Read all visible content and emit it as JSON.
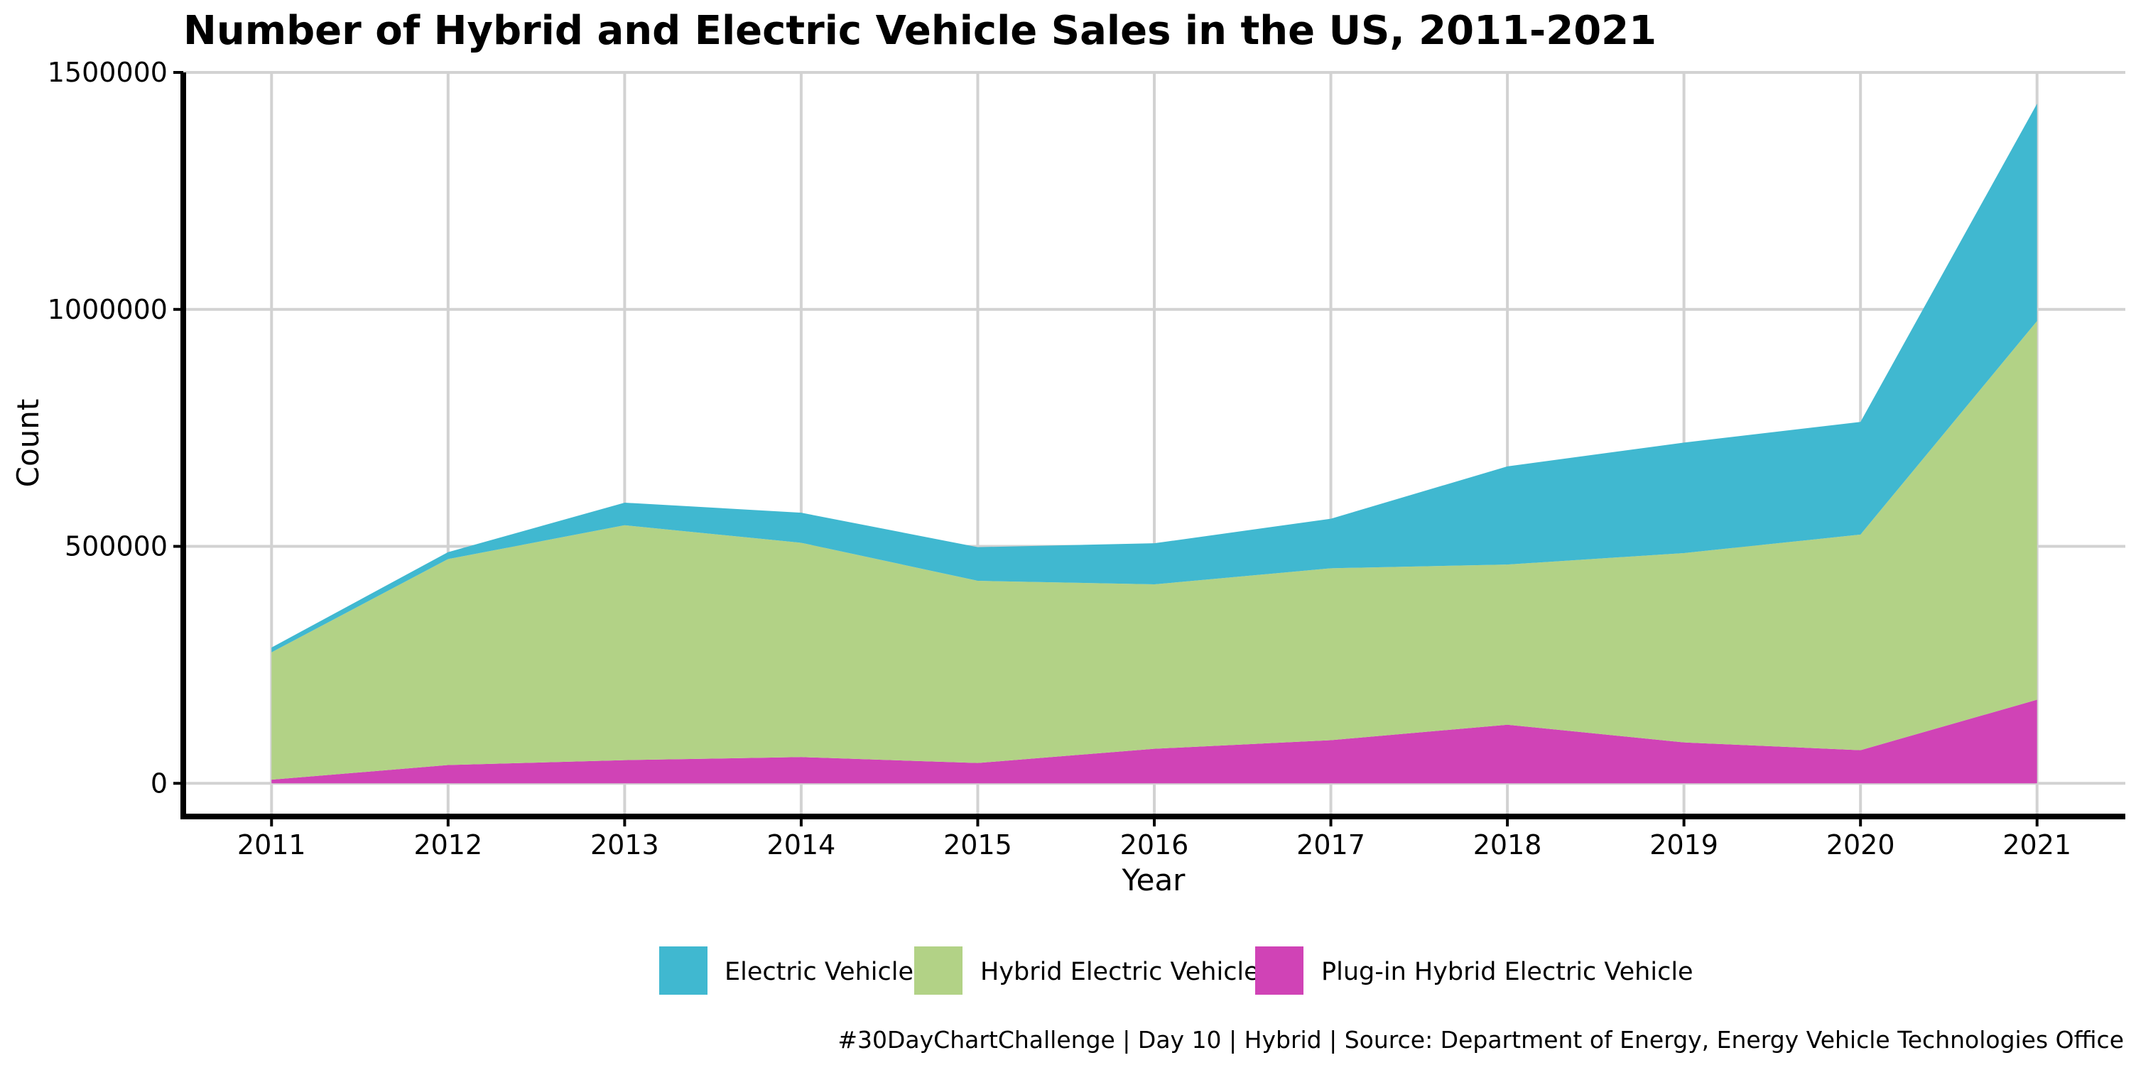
{
  "chart_data": {
    "type": "area",
    "stacked": true,
    "title": "Number of Hybrid and Electric Vehicle Sales in the US, 2011-2021",
    "xlabel": "Year",
    "ylabel": "Count",
    "x": [
      2011,
      2012,
      2013,
      2014,
      2015,
      2016,
      2017,
      2018,
      2019,
      2020,
      2021
    ],
    "x_ticks": [
      "2011",
      "2012",
      "2013",
      "2014",
      "2015",
      "2016",
      "2017",
      "2018",
      "2019",
      "2020",
      "2021"
    ],
    "xlim": [
      2010.5,
      2021.5
    ],
    "y_ticks": [
      "0",
      "500000",
      "1000000",
      "1500000"
    ],
    "ylim": [
      -70000,
      1500000
    ],
    "grid": true,
    "legend_position": "bottom",
    "series": [
      {
        "name": "Plug-in Hybrid Electric Vehicle",
        "color": "#d043b6",
        "values": [
          7700,
          38600,
          49000,
          55400,
          42900,
          72900,
          91000,
          123700,
          86300,
          69900,
          176500
        ]
      },
      {
        "name": "Hybrid Electric Vehicle",
        "color": "#b2d286",
        "values": [
          268800,
          434600,
          495500,
          452200,
          384400,
          346900,
          362800,
          338000,
          399500,
          455000,
          799000
        ]
      },
      {
        "name": "Electric Vehicle",
        "color": "#40b8d0",
        "values": [
          10100,
          14600,
          47700,
          63400,
          71000,
          86700,
          104500,
          207100,
          233200,
          237600,
          458600
        ]
      }
    ],
    "legend_order": [
      "Electric Vehicle",
      "Hybrid Electric Vehicle",
      "Plug-in Hybrid Electric Vehicle"
    ],
    "caption": "#30DayChartChallenge | Day 10 | Hybrid | Source: Department of Energy, Energy Vehicle Technologies Office"
  }
}
